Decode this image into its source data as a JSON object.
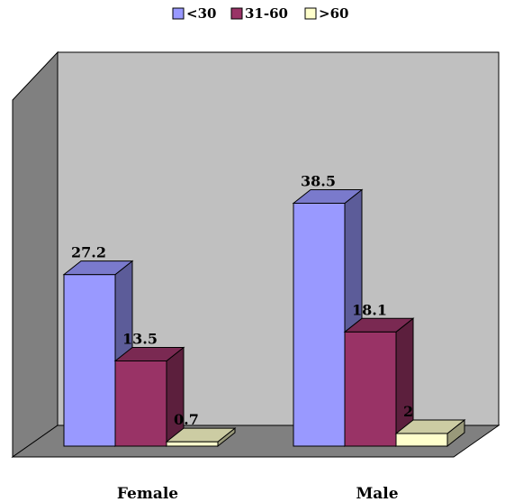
{
  "chart_data": {
    "type": "bar",
    "title": "",
    "xlabel": "",
    "ylabel": "",
    "categories": [
      "Female",
      "Male"
    ],
    "series": [
      {
        "name": "<30",
        "values": [
          27.2,
          38.5
        ],
        "color": "#9999ff"
      },
      {
        "name": "31-60",
        "values": [
          13.5,
          18.1
        ],
        "color": "#993366"
      },
      {
        "name": ">60",
        "values": [
          0.7,
          2
        ],
        "color": "#ffffcc"
      }
    ],
    "data_labels": [
      "27.2",
      "13.5",
      "0.7",
      "38.5",
      "18.1",
      "2"
    ],
    "ylim": [
      0,
      40
    ],
    "legend_position": "top",
    "grid": false,
    "style": "3d-clustered-column",
    "wall_color": "#c0c0c0",
    "floor_color": "#808080"
  }
}
